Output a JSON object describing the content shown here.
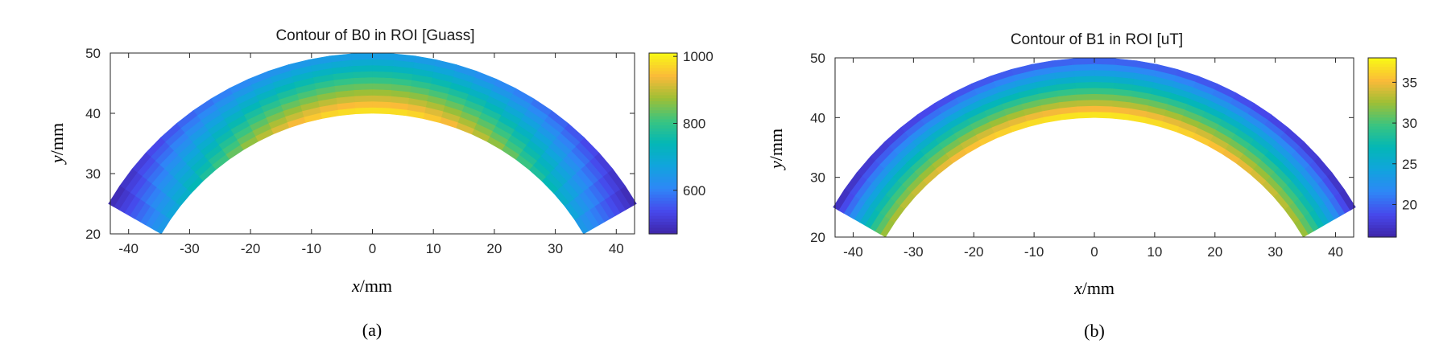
{
  "chart_data": [
    {
      "type": "heatmap",
      "title": "Contour of B0 in ROI [Guass]",
      "xlabel_var": "x",
      "xlabel_unit": "/mm",
      "ylabel_var": "y",
      "ylabel_unit": "/mm",
      "caption": "(a)",
      "xlim": [
        -43,
        43
      ],
      "ylim": [
        20,
        50
      ],
      "xticks": [
        -40,
        -30,
        -20,
        -10,
        0,
        10,
        20,
        30,
        40
      ],
      "yticks": [
        20,
        30,
        40,
        50
      ],
      "region": {
        "shape": "annular-arc",
        "inner_radius_mm": 40,
        "outer_radius_mm": 50,
        "angle_start_deg": 30,
        "angle_end_deg": 150
      },
      "clim": [
        470,
        1010
      ],
      "cticks": [
        600,
        800,
        1000
      ],
      "colormap": "parula",
      "value_at_inner_center": 1000,
      "value_at_outer_center": 640,
      "value_at_inner_edge": 640,
      "value_at_outer_edge": 470
    },
    {
      "type": "heatmap",
      "title": "Contour of B1 in ROI [uT]",
      "xlabel_var": "x",
      "xlabel_unit": "/mm",
      "ylabel_var": "y",
      "ylabel_unit": "/mm",
      "caption": "(b)",
      "xlim": [
        -43,
        43
      ],
      "ylim": [
        20,
        50
      ],
      "xticks": [
        -40,
        -30,
        -20,
        -10,
        0,
        10,
        20,
        30,
        40
      ],
      "yticks": [
        20,
        30,
        40,
        50
      ],
      "region": {
        "shape": "annular-arc",
        "inner_radius_mm": 40,
        "outer_radius_mm": 50,
        "angle_start_deg": 30,
        "angle_end_deg": 150
      },
      "clim": [
        16,
        38
      ],
      "cticks": [
        20,
        25,
        30,
        35
      ],
      "colormap": "parula",
      "value_at_inner_center": 38,
      "value_at_outer_center": 19,
      "value_at_inner_edge": 33,
      "value_at_outer_edge": 16
    }
  ]
}
